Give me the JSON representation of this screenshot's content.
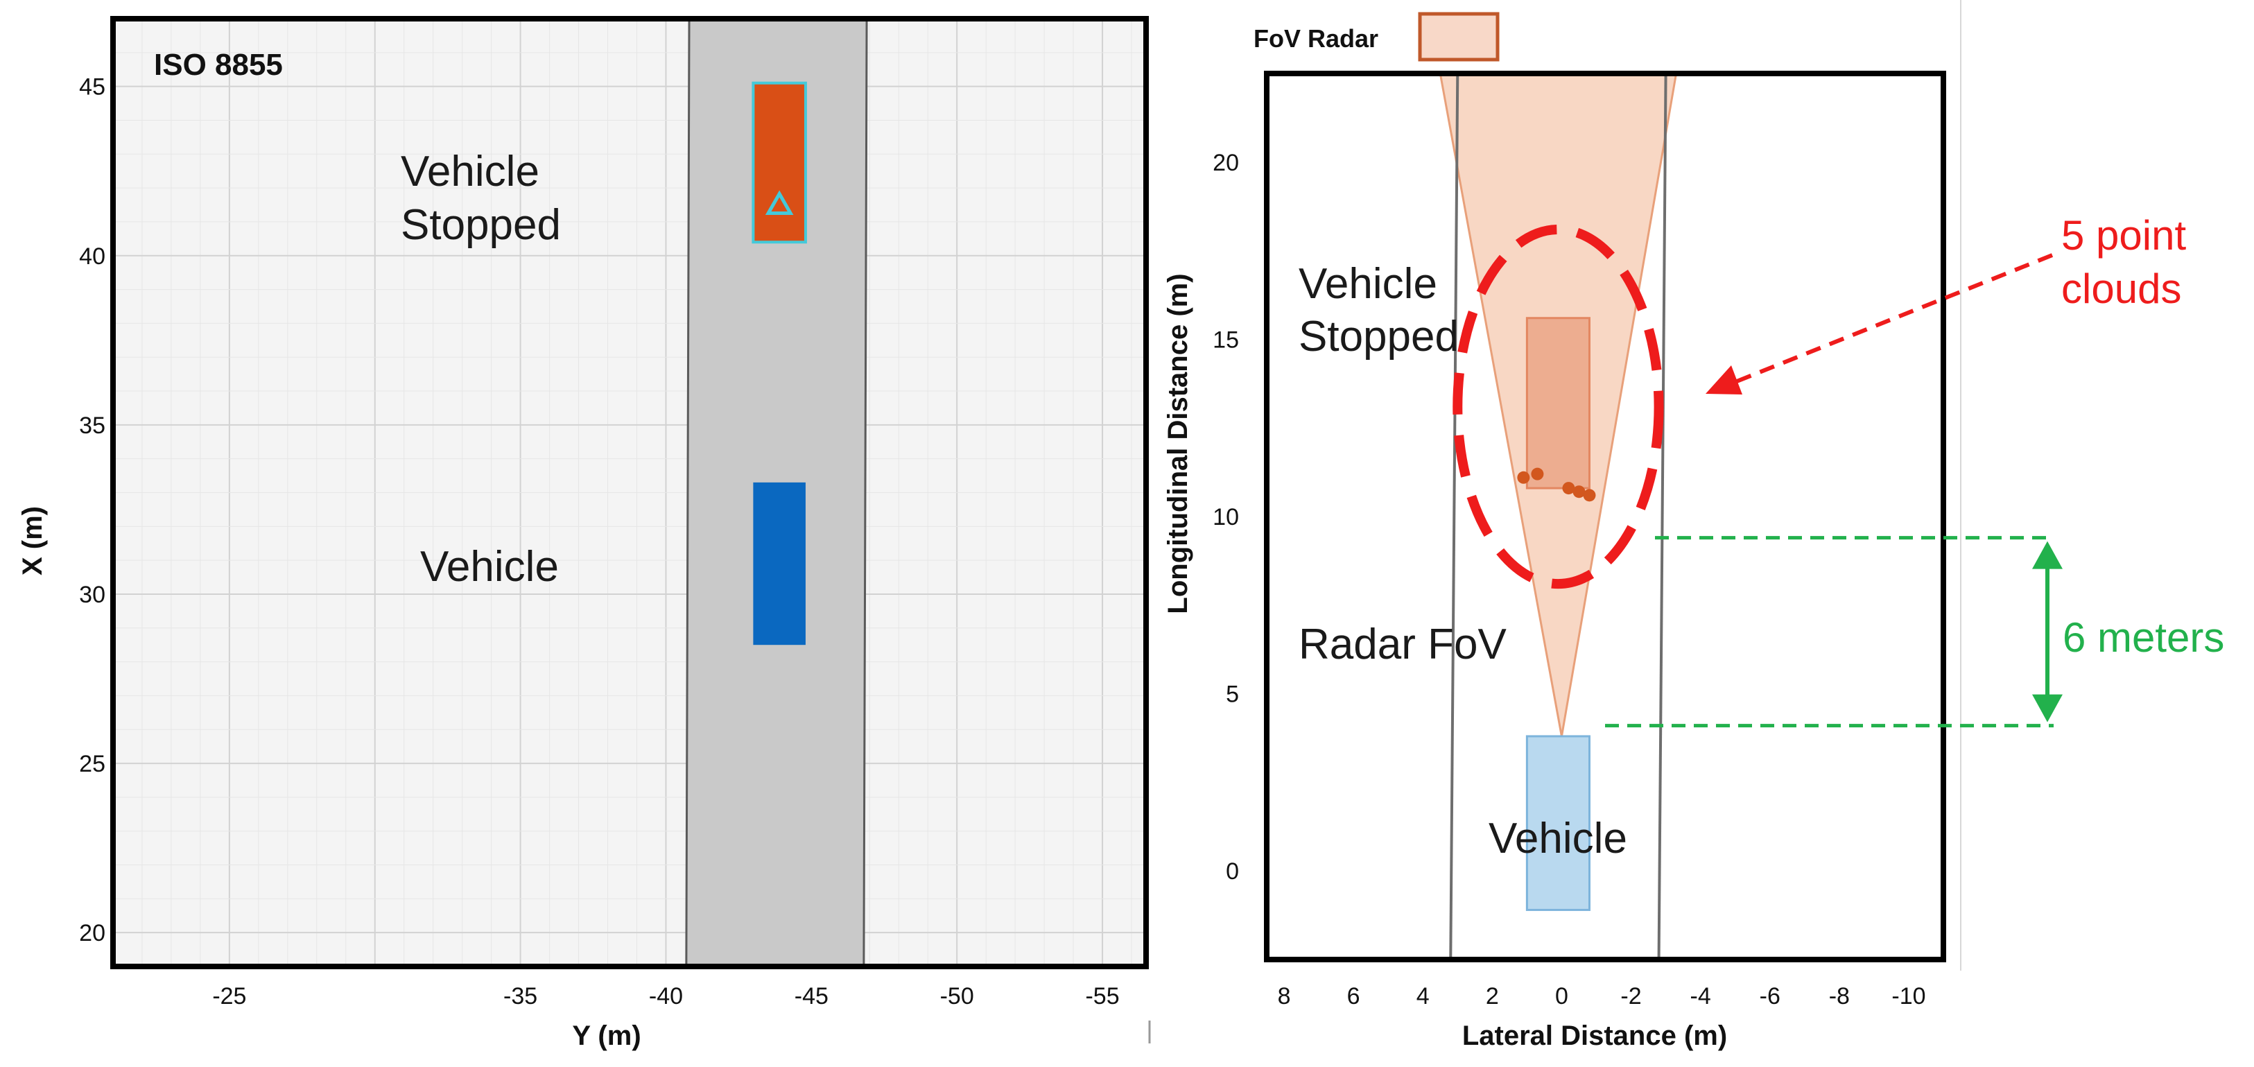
{
  "chart_data": [
    {
      "type": "scatter",
      "title": "ISO 8855",
      "xlabel": "Y (m)",
      "ylabel": "X (m)",
      "xlim": [
        -21,
        -56.5
      ],
      "ylim": [
        19,
        47
      ],
      "grid": true,
      "xticks": [
        -25,
        -35,
        -40,
        -45,
        -50,
        -55
      ],
      "xtick_labels": [
        "-25",
        "-35",
        "-40",
        "-45",
        "-50",
        "-55"
      ],
      "yticks": [
        20,
        25,
        30,
        35,
        40,
        45
      ],
      "ytick_labels": [
        "20",
        "25",
        "30",
        "35",
        "40",
        "45"
      ],
      "road": {
        "bottom_y": [
          -40.7,
          -46.8
        ],
        "top_y": [
          -40.8,
          -46.9
        ]
      },
      "objects": [
        {
          "label": "Vehicle Stopped",
          "y_range": [
            -43.0,
            -44.8
          ],
          "x_range": [
            40.4,
            45.1
          ],
          "color": "#d94f16",
          "outline": "#44c9d9"
        },
        {
          "label": "Vehicle",
          "y_range": [
            -43.0,
            -44.8
          ],
          "x_range": [
            28.5,
            33.3
          ],
          "color": "#0a68c0"
        }
      ],
      "marker": {
        "type": "triangle",
        "y": -43.9,
        "x": 41.5,
        "color": "#44c9d9"
      },
      "annotations": [
        {
          "text_lines": [
            "Vehicle",
            "Stopped"
          ]
        },
        {
          "text_lines": [
            "Vehicle"
          ]
        }
      ]
    },
    {
      "type": "scatter",
      "xlabel": "Lateral Distance (m)",
      "ylabel": "Longitudinal Distance (m)",
      "xlim": [
        8.5,
        -11
      ],
      "ylim": [
        -2.5,
        22.5
      ],
      "grid": false,
      "xticks": [
        8,
        6,
        4,
        2,
        0,
        -2,
        -4,
        -6,
        -8,
        -10
      ],
      "xtick_labels": [
        "8",
        "6",
        "4",
        "2",
        "0",
        "-2",
        "-4",
        "-6",
        "-8",
        "-10"
      ],
      "yticks": [
        0,
        5,
        10,
        15,
        20
      ],
      "ytick_labels": [
        "0",
        "5",
        "10",
        "15",
        "20"
      ],
      "legend": {
        "label": "FoV Radar",
        "position": "top-left"
      },
      "lane_lines": [
        {
          "bottom_x": 3.2,
          "top_x": 3.0
        },
        {
          "bottom_x": -2.8,
          "top_x": -3.0
        }
      ],
      "radar_fov": {
        "apex": [
          0.0,
          3.8
        ],
        "left_top": [
          3.5,
          22.5
        ],
        "right_top": [
          -3.3,
          22.5
        ],
        "color": "#f5c9b0"
      },
      "objects": [
        {
          "label": "Vehicle Stopped",
          "x_range": [
            1.0,
            -0.8
          ],
          "y_range": [
            10.8,
            15.6
          ],
          "fill": "#eca688",
          "edge": "#e07a50"
        },
        {
          "label": "Vehicle",
          "x_range": [
            1.0,
            -0.8
          ],
          "y_range": [
            -1.1,
            3.8
          ],
          "fill": "#b9d9ef",
          "edge": "#7db4dc"
        }
      ],
      "points": {
        "name": "point clouds",
        "color": "#d2571e",
        "x": [
          1.1,
          0.7,
          -0.2,
          -0.5,
          -0.8
        ],
        "y": [
          11.1,
          11.2,
          10.8,
          10.7,
          10.6
        ]
      },
      "highlight_circle": {
        "center": [
          0.1,
          13.1
        ],
        "radius_x": 2.9,
        "radius_y": 5.0,
        "color": "#ee1c1c"
      },
      "spacing": {
        "from_y": 4.1,
        "to_y": 9.4,
        "value": 6,
        "unit": "meters",
        "color": "#22b14c"
      },
      "annotations": [
        {
          "text_lines": [
            "Vehicle",
            "Stopped"
          ]
        },
        {
          "text_lines": [
            "Radar FoV"
          ]
        },
        {
          "text_lines": [
            "Vehicle"
          ]
        },
        {
          "text_lines": [
            "5 point",
            "clouds"
          ],
          "color": "#ee1c1c"
        },
        {
          "text_lines": [
            "6 meters"
          ],
          "color": "#22b14c"
        }
      ]
    }
  ]
}
